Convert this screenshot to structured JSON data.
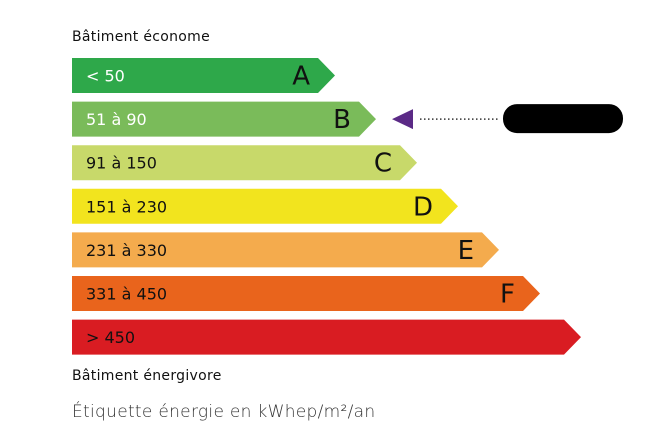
{
  "top_label": "Bâtiment économe",
  "bottom_label": "Bâtiment énergivore",
  "unit_label": "Étiquette énergie en kWhep/m²/an",
  "classes": [
    {
      "range": "< 50",
      "letter": "A",
      "color": "#2ea84a",
      "text_color": "#ffffff"
    },
    {
      "range": "51 à 90",
      "letter": "B",
      "color": "#7abb5a",
      "text_color": "#ffffff"
    },
    {
      "range": "91 à 150",
      "letter": "C",
      "color": "#c8d96a",
      "text_color": "#111111"
    },
    {
      "range": "151 à 230",
      "letter": "D",
      "color": "#f2e41e",
      "text_color": "#111111"
    },
    {
      "range": "231 à 330",
      "letter": "E",
      "color": "#f4ab4d",
      "text_color": "#111111"
    },
    {
      "range": "331 à 450",
      "letter": "F",
      "color": "#e9641c",
      "text_color": "#111111"
    },
    {
      "range": "> 450",
      "letter": "",
      "color": "#d91c22",
      "text_color": "#111111"
    }
  ],
  "indicator": {
    "class": "B",
    "color": "#5b2a86",
    "value_redacted": true
  }
}
